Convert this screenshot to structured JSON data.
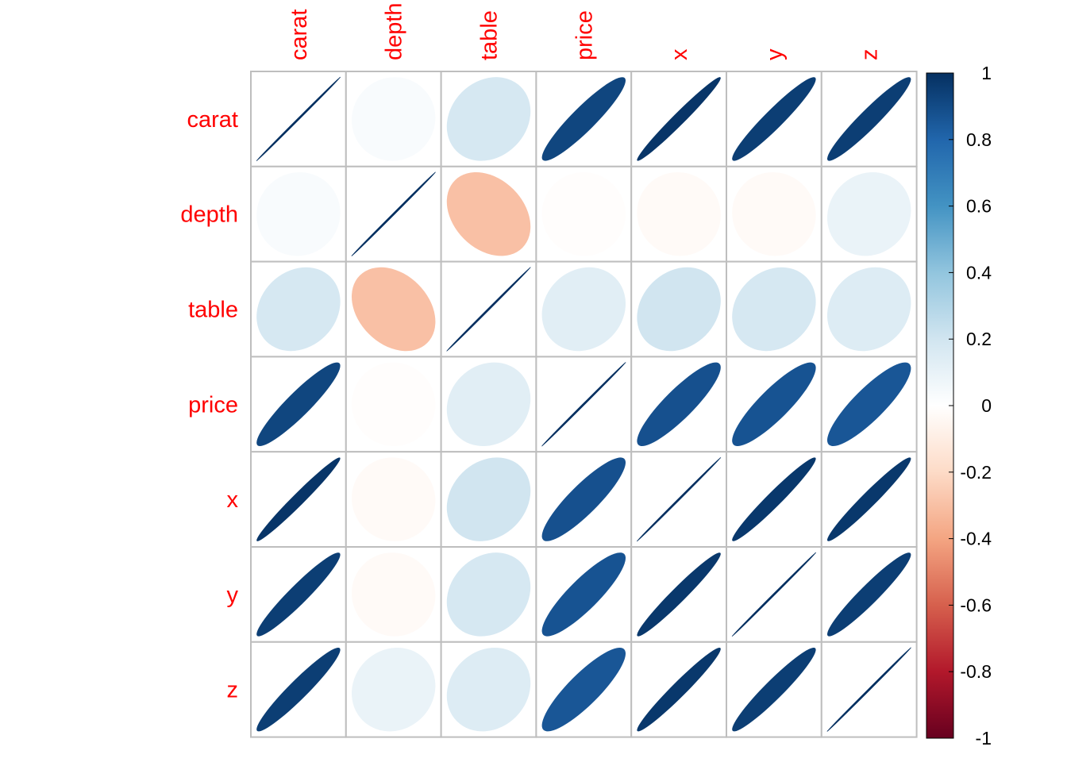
{
  "chart_data": {
    "type": "heatmap",
    "variables": [
      "carat",
      "depth",
      "table",
      "price",
      "x",
      "y",
      "z"
    ],
    "matrix": [
      [
        1.0,
        0.03,
        0.18,
        0.92,
        0.98,
        0.95,
        0.95
      ],
      [
        0.03,
        1.0,
        -0.3,
        -0.01,
        -0.03,
        -0.03,
        0.09
      ],
      [
        0.18,
        -0.3,
        1.0,
        0.13,
        0.2,
        0.18,
        0.15
      ],
      [
        0.92,
        -0.01,
        0.13,
        1.0,
        0.88,
        0.87,
        0.86
      ],
      [
        0.98,
        -0.03,
        0.2,
        0.88,
        1.0,
        0.97,
        0.97
      ],
      [
        0.95,
        -0.03,
        0.18,
        0.87,
        0.97,
        1.0,
        0.95
      ],
      [
        0.95,
        0.09,
        0.15,
        0.86,
        0.97,
        0.95,
        1.0
      ]
    ],
    "colorbar": {
      "range": [
        -1,
        1
      ],
      "ticks": [
        "1",
        "0.8",
        "0.6",
        "0.4",
        "0.2",
        "0",
        "-0.2",
        "-0.4",
        "-0.6",
        "-0.8",
        "-1"
      ]
    },
    "colors": {
      "label": "#ff0000",
      "grid": "#bebebe",
      "scale": [
        "#67001f",
        "#b2182b",
        "#d6604d",
        "#f4a582",
        "#fddbc7",
        "#ffffff",
        "#d1e5f0",
        "#92c5de",
        "#4393c3",
        "#2166ac",
        "#053061"
      ]
    }
  }
}
